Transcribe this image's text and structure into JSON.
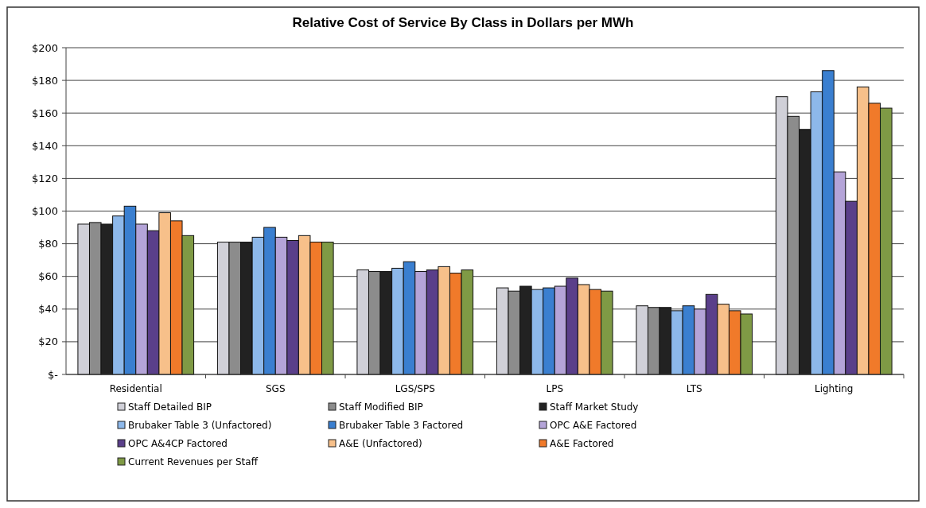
{
  "chart_data": {
    "type": "bar",
    "title": "Relative Cost of Service By Class in Dollars per MWh",
    "categories": [
      "Residential",
      "SGS",
      "LGS/SPS",
      "LPS",
      "LTS",
      "Lighting"
    ],
    "series": [
      {
        "name": "Staff Detailed BIP",
        "color": "#d0d0d8",
        "values": [
          92,
          81,
          64,
          53,
          42,
          170
        ]
      },
      {
        "name": "Staff Modified BIP",
        "color": "#8c8c8c",
        "values": [
          93,
          81,
          63,
          51,
          41,
          158
        ]
      },
      {
        "name": "Staff Market Study",
        "color": "#222222",
        "values": [
          92,
          81,
          63,
          54,
          41,
          150
        ]
      },
      {
        "name": "Brubaker Table 3 (Unfactored)",
        "color": "#8db8ea",
        "values": [
          97,
          84,
          65,
          52,
          39,
          173
        ]
      },
      {
        "name": "Brubaker Table 3 Factored",
        "color": "#3a7fd0",
        "values": [
          103,
          90,
          69,
          53,
          42,
          186
        ]
      },
      {
        "name": "OPC A&E Factored",
        "color": "#b4a4d8",
        "values": [
          92,
          84,
          63,
          54,
          40,
          124
        ]
      },
      {
        "name": "OPC A&4CP Factored",
        "color": "#5a3f8a",
        "values": [
          88,
          82,
          64,
          59,
          49,
          106
        ]
      },
      {
        "name": "A&E (Unfactored)",
        "color": "#f7c08a",
        "values": [
          99,
          85,
          66,
          55,
          43,
          176
        ]
      },
      {
        "name": "A&E Factored",
        "color": "#f07a2a",
        "values": [
          94,
          81,
          62,
          52,
          39,
          166
        ]
      },
      {
        "name": "Current Revenues per Staff",
        "color": "#7f9a45",
        "values": [
          85,
          81,
          64,
          51,
          37,
          163
        ]
      }
    ],
    "ylim": [
      0,
      200
    ],
    "yticks": [
      {
        "value": 0,
        "label": "$-"
      },
      {
        "value": 20,
        "label": "$20"
      },
      {
        "value": 40,
        "label": "$40"
      },
      {
        "value": 60,
        "label": "$60"
      },
      {
        "value": 80,
        "label": "$80"
      },
      {
        "value": 100,
        "label": "$100"
      },
      {
        "value": 120,
        "label": "$120"
      },
      {
        "value": 140,
        "label": "$140"
      },
      {
        "value": 160,
        "label": "$160"
      },
      {
        "value": 180,
        "label": "$180"
      },
      {
        "value": 200,
        "label": "$200"
      }
    ],
    "grid": "y",
    "legend": "bottom"
  }
}
